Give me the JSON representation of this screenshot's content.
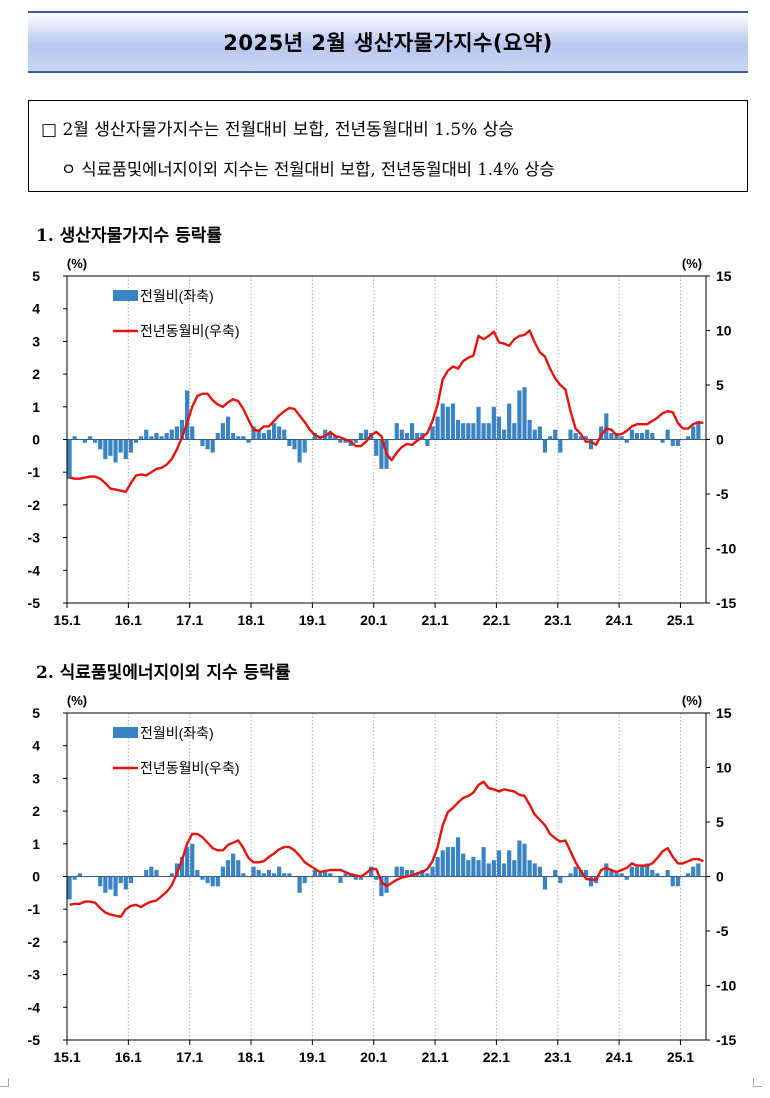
{
  "header": {
    "title": "2025년 2월 생산자물가지수(요약)"
  },
  "summary": {
    "line1": "□ 2월 생산자물가지수는 전월대비 보합, 전년동월대비 1.5% 상승",
    "line2": "ㅇ 식료품및에너지이외 지수는 전월대비 보합, 전년동월대비 1.4% 상승"
  },
  "sections": {
    "s1": "1. 생산자물가지수 등락률",
    "s2": "2. 식료품및에너지이외 지수 등락률"
  },
  "colors": {
    "bar": "#3b84c4",
    "line": "#e3130e",
    "grid": "#b0b0b0"
  },
  "chart_data": [
    {
      "type": "bar",
      "x_tick_labels": [
        "15.1",
        "16.1",
        "17.1",
        "18.1",
        "19.1",
        "20.1",
        "21.1",
        "22.1",
        "23.1",
        "24.1",
        "25.1"
      ],
      "left_axis": {
        "unit": "(%)",
        "ylim": [
          -5,
          5
        ],
        "ticks": [
          "5",
          "4",
          "3",
          "2",
          "1",
          "0",
          "-1",
          "-2",
          "-3",
          "-4",
          "-5"
        ]
      },
      "right_axis": {
        "unit": "(%)",
        "ylim": [
          -15,
          15
        ],
        "ticks": [
          "15",
          "10",
          "5",
          "0",
          "-5",
          "-10",
          "-15"
        ]
      },
      "legend": {
        "bar": "전월비(좌축)",
        "line": "전년동월비(우축)"
      },
      "series": [
        {
          "name": "전월비(좌축)",
          "type": "bar",
          "axis": "left",
          "values": [
            -1.2,
            0.1,
            0.0,
            -0.1,
            0.1,
            -0.1,
            -0.3,
            -0.6,
            -0.5,
            -0.7,
            -0.4,
            -0.6,
            -0.4,
            -0.1,
            0.1,
            0.3,
            0.1,
            0.2,
            0.1,
            0.2,
            0.3,
            0.4,
            0.6,
            1.5,
            0.4,
            0.0,
            -0.2,
            -0.3,
            -0.4,
            0.2,
            0.5,
            0.7,
            0.2,
            0.1,
            0.1,
            -0.1,
            0.4,
            0.3,
            0.2,
            0.3,
            0.5,
            0.4,
            0.3,
            -0.2,
            -0.3,
            -0.7,
            -0.4,
            0.0,
            0.2,
            0.1,
            0.3,
            0.2,
            0.1,
            -0.1,
            -0.1,
            -0.2,
            -0.1,
            0.2,
            0.3,
            0.2,
            -0.5,
            -0.9,
            -0.9,
            0.0,
            0.5,
            0.3,
            0.2,
            0.5,
            0.2,
            0.2,
            -0.2,
            0.4,
            0.7,
            1.1,
            1.0,
            1.1,
            0.6,
            0.5,
            0.5,
            0.5,
            1.0,
            0.5,
            0.5,
            1.0,
            0.7,
            0.3,
            1.1,
            0.5,
            1.5,
            1.6,
            0.6,
            0.3,
            0.4,
            -0.4,
            0.1,
            0.3,
            -0.4,
            0.0,
            0.3,
            0.2,
            0.1,
            0.1,
            -0.3,
            0.0,
            0.4,
            0.8,
            0.2,
            0.2,
            0.1,
            -0.1,
            0.3,
            0.2,
            0.2,
            0.3,
            0.2,
            0.0,
            -0.1,
            0.3,
            -0.2,
            -0.2,
            0.0,
            0.1,
            0.4,
            0.5,
            0.0
          ]
        },
        {
          "name": "전년동월비(우축)",
          "type": "line",
          "axis": "right",
          "values": [
            -3.5,
            -3.6,
            -3.6,
            -3.5,
            -3.4,
            -3.4,
            -3.6,
            -4.0,
            -4.5,
            -4.6,
            -4.7,
            -4.8,
            -4.0,
            -3.3,
            -3.2,
            -3.3,
            -3.0,
            -2.7,
            -2.6,
            -2.3,
            -1.8,
            -0.9,
            0.2,
            1.5,
            3.0,
            4.0,
            4.2,
            4.2,
            3.6,
            3.2,
            3.0,
            3.4,
            3.7,
            3.5,
            2.8,
            1.8,
            0.9,
            0.8,
            1.2,
            1.2,
            1.7,
            2.2,
            2.6,
            2.9,
            2.8,
            2.2,
            1.6,
            0.9,
            0.4,
            0.2,
            0.3,
            0.7,
            0.3,
            0.2,
            0.0,
            -0.2,
            -0.6,
            -0.6,
            -0.2,
            0.4,
            0.7,
            0.3,
            -1.3,
            -1.9,
            -1.2,
            -0.7,
            -0.4,
            -0.5,
            -0.1,
            0.2,
            0.6,
            1.7,
            3.2,
            5.5,
            6.3,
            6.7,
            6.5,
            7.2,
            7.5,
            7.7,
            9.5,
            9.2,
            9.5,
            9.9,
            8.9,
            8.8,
            8.6,
            9.2,
            9.5,
            9.6,
            10.0,
            8.9,
            8.0,
            7.6,
            6.5,
            5.6,
            5.0,
            4.6,
            2.6,
            1.0,
            0.5,
            -0.2,
            -0.2,
            -0.5,
            0.4,
            1.0,
            0.9,
            0.4,
            0.5,
            0.8,
            1.2,
            1.4,
            1.4,
            1.4,
            1.7,
            2.0,
            2.4,
            2.6,
            2.5,
            1.5,
            1.0,
            1.0,
            1.4,
            1.6,
            1.5
          ]
        }
      ]
    },
    {
      "type": "bar",
      "x_tick_labels": [
        "15.1",
        "16.1",
        "17.1",
        "18.1",
        "19.1",
        "20.1",
        "21.1",
        "22.1",
        "23.1",
        "24.1",
        "25.1"
      ],
      "left_axis": {
        "unit": "(%)",
        "ylim": [
          -5,
          5
        ],
        "ticks": [
          "5",
          "4",
          "3",
          "2",
          "1",
          "0",
          "-1",
          "-2",
          "-3",
          "-4",
          "-5"
        ]
      },
      "right_axis": {
        "unit": "(%)",
        "ylim": [
          -15,
          15
        ],
        "ticks": [
          "15",
          "10",
          "5",
          "0",
          "-5",
          "-10",
          "-15"
        ]
      },
      "legend": {
        "bar": "전월비(좌축)",
        "line": "전년동월비(우축)"
      },
      "series": [
        {
          "name": "전월비(좌축)",
          "type": "bar",
          "axis": "left",
          "values": [
            -0.7,
            -0.1,
            0.1,
            0.0,
            0.0,
            0.0,
            -0.3,
            -0.5,
            -0.4,
            -0.6,
            -0.2,
            -0.4,
            -0.2,
            0.0,
            0.0,
            0.2,
            0.3,
            0.2,
            0.0,
            0.0,
            0.1,
            0.4,
            0.6,
            0.9,
            1.0,
            0.2,
            -0.1,
            -0.2,
            -0.3,
            -0.3,
            0.3,
            0.5,
            0.7,
            0.5,
            0.1,
            0.0,
            0.3,
            0.2,
            0.1,
            0.2,
            0.1,
            0.3,
            0.1,
            0.1,
            0.0,
            -0.5,
            -0.2,
            0.0,
            0.2,
            0.1,
            0.2,
            0.1,
            0.0,
            -0.2,
            0.1,
            0.1,
            -0.1,
            -0.1,
            0.0,
            0.3,
            -0.1,
            -0.6,
            -0.5,
            0.0,
            0.3,
            0.3,
            0.2,
            0.2,
            0.1,
            0.2,
            0.1,
            0.3,
            0.6,
            0.8,
            0.9,
            0.9,
            1.2,
            0.7,
            0.5,
            0.6,
            0.5,
            0.9,
            0.4,
            0.5,
            0.8,
            0.4,
            0.8,
            0.5,
            1.1,
            1.0,
            0.5,
            0.4,
            0.3,
            -0.4,
            0.0,
            0.2,
            -0.2,
            0.0,
            0.1,
            0.3,
            0.2,
            0.2,
            -0.3,
            -0.2,
            0.0,
            0.4,
            0.2,
            0.1,
            0.1,
            -0.1,
            0.3,
            0.3,
            0.3,
            0.4,
            0.2,
            0.1,
            0.0,
            0.2,
            -0.3,
            -0.3,
            0.0,
            0.1,
            0.3,
            0.4,
            0.0
          ]
        },
        {
          "name": "전년동월비(우축)",
          "type": "line",
          "axis": "right",
          "values": [
            -2.6,
            -2.5,
            -2.5,
            -2.3,
            -2.3,
            -2.4,
            -2.9,
            -3.3,
            -3.5,
            -3.6,
            -3.7,
            -3.0,
            -2.7,
            -2.6,
            -2.8,
            -2.5,
            -2.3,
            -2.2,
            -1.8,
            -1.4,
            -0.8,
            0.3,
            1.5,
            3.0,
            3.9,
            3.9,
            3.6,
            3.1,
            2.6,
            2.4,
            2.4,
            2.9,
            3.1,
            3.3,
            2.6,
            1.7,
            1.3,
            1.3,
            1.4,
            1.8,
            2.1,
            2.5,
            2.7,
            2.7,
            2.4,
            1.9,
            1.3,
            1.0,
            0.7,
            0.4,
            0.5,
            0.6,
            0.6,
            0.6,
            0.4,
            0.2,
            0.1,
            0.0,
            0.3,
            0.7,
            0.7,
            -0.5,
            -0.9,
            -0.6,
            -0.3,
            -0.1,
            0.0,
            0.1,
            0.3,
            0.4,
            0.7,
            1.4,
            2.7,
            4.7,
            5.9,
            6.3,
            6.8,
            7.2,
            7.4,
            7.7,
            8.4,
            8.7,
            8.1,
            8.0,
            7.8,
            8.0,
            7.9,
            7.8,
            7.5,
            7.4,
            6.6,
            5.7,
            5.2,
            4.7,
            3.9,
            3.5,
            3.2,
            3.3,
            2.3,
            1.3,
            0.5,
            -0.2,
            -0.3,
            -0.3,
            0.6,
            0.8,
            0.6,
            0.4,
            0.6,
            0.8,
            1.2,
            1.0,
            1.0,
            1.0,
            1.2,
            1.7,
            2.3,
            2.6,
            1.8,
            1.2,
            1.2,
            1.4,
            1.6,
            1.6,
            1.4
          ]
        }
      ]
    }
  ]
}
